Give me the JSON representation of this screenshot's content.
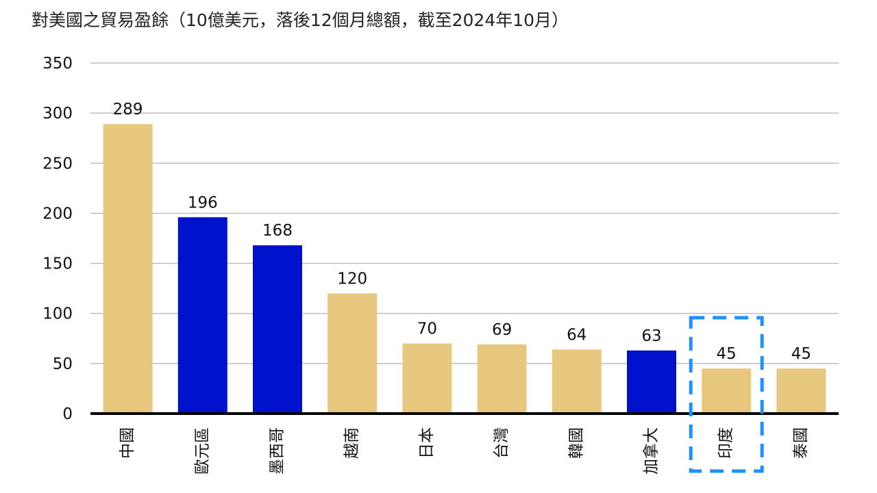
{
  "chart_data": {
    "type": "bar",
    "title": "對美國之貿易盈餘（10億美元，落後12個月總額，截至2024年10月）",
    "xlabel": "",
    "ylabel": "",
    "ylim": [
      0,
      350
    ],
    "yticks": [
      "0",
      "50",
      "100",
      "150",
      "200",
      "250",
      "300",
      "350"
    ],
    "grid": true,
    "legend": "none",
    "categories": [
      "中國",
      "歐元區",
      "墨西哥",
      "越南",
      "日本",
      "台灣",
      "韓國",
      "加拿大",
      "印度",
      "泰國"
    ],
    "values": [
      289,
      196,
      168,
      120,
      70,
      69,
      64,
      63,
      45,
      45
    ],
    "value_labels": [
      "289",
      "196",
      "168",
      "120",
      "70",
      "69",
      "64",
      "63",
      "45",
      "45"
    ],
    "bar_colors": [
      "#e8c87f",
      "#0011cc",
      "#0011cc",
      "#e8c87f",
      "#e8c87f",
      "#e8c87f",
      "#e8c87f",
      "#0011cc",
      "#e8c87f",
      "#e8c87f"
    ],
    "highlighted_category": "印度",
    "highlight_color": "#1e90ff",
    "gridline_color": "#b0b0b0",
    "axis_color": "#000000"
  }
}
